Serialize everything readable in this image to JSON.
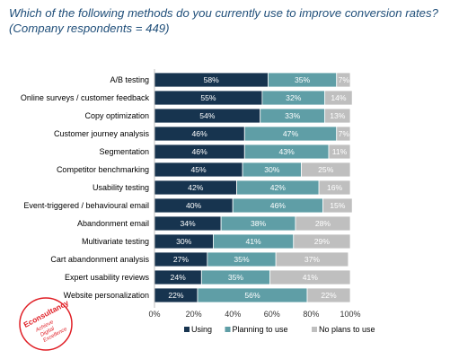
{
  "title": "Which of the following methods do you currently use to improve conversion rates? (Company respondents = 449)",
  "logo": {
    "lines": [
      "Econsultancy",
      "Achieve",
      "Digital",
      "Excellence"
    ],
    "color": "#e01f26"
  },
  "chart_data": {
    "type": "bar",
    "orientation": "horizontal",
    "stacked": true,
    "categories": [
      "A/B testing",
      "Online surveys / customer feedback",
      "Copy optimization",
      "Customer journey analysis",
      "Segmentation",
      "Competitor benchmarking",
      "Usability testing",
      "Event-triggered / behavioural email",
      "Abandonment email",
      "Multivariate testing",
      "Cart abandonment analysis",
      "Expert usability reviews",
      "Website personalization"
    ],
    "series": [
      {
        "name": "Using",
        "color": "#17344f",
        "values": [
          58,
          55,
          54,
          46,
          46,
          45,
          42,
          40,
          34,
          30,
          27,
          24,
          22
        ]
      },
      {
        "name": "Planning to use",
        "color": "#5f9ea6",
        "values": [
          35,
          32,
          33,
          47,
          43,
          30,
          42,
          46,
          38,
          41,
          35,
          35,
          56
        ]
      },
      {
        "name": "No plans to use",
        "color": "#bfbfbf",
        "values": [
          7,
          14,
          13,
          7,
          11,
          25,
          16,
          15,
          28,
          29,
          37,
          41,
          22
        ]
      }
    ],
    "value_suffix": "%",
    "xlim": [
      0,
      100
    ],
    "xticks": [
      "0%",
      "20%",
      "40%",
      "60%",
      "80%",
      "100%"
    ],
    "legend_position": "bottom",
    "grid": false
  }
}
